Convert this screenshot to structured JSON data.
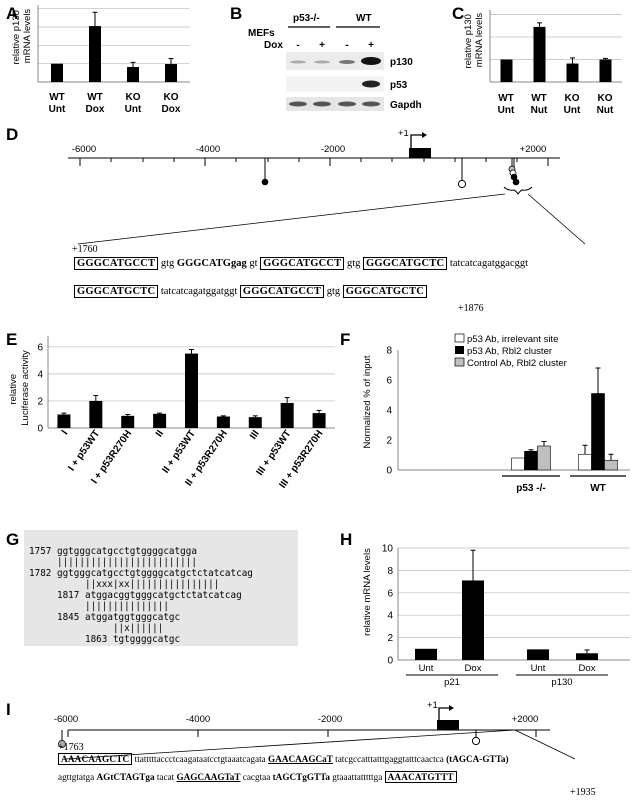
{
  "panel_labels": {
    "A": "A",
    "B": "B",
    "C": "C",
    "D": "D",
    "E": "E",
    "F": "F",
    "G": "G",
    "H": "H",
    "I": "I"
  },
  "panelA": {
    "ylabel": "relative p130\nmRNA levels",
    "cat_top": [
      "WT",
      "WT",
      "KO",
      "KO"
    ],
    "cat_bot": [
      "Unt",
      "Dox",
      "Unt",
      "Dox"
    ]
  },
  "panelB": {
    "mefs": "MEFs",
    "g1": "p53-/-",
    "g2": "WT",
    "dox": "Dox",
    "signs": [
      "-",
      "+",
      "-",
      "+"
    ],
    "bands": [
      "p130",
      "p53",
      "Gapdh"
    ]
  },
  "panelC": {
    "ylabel": "relative p130\nmRNA levels",
    "cat_top": [
      "WT",
      "WT",
      "KO",
      "KO"
    ],
    "cat_bot": [
      "Unt",
      "Nut",
      "Unt",
      "Nut"
    ]
  },
  "panelD": {
    "ticks": [
      "-6000",
      "-4000",
      "-2000",
      "+2000"
    ],
    "plus1": "+1",
    "start": "+1760",
    "end": "+1876",
    "line1": [
      "GGGCATGCCT",
      " gtg ",
      "GGGCATGgag",
      " gt ",
      "GGGCATGCCT",
      " gtg ",
      "GGGCATGCTC",
      " tatcatcagatggacggt"
    ],
    "line2": [
      "GGGCATGCTC",
      " tatcatcagatggatggt ",
      "GGGCATGCCT",
      " gtg ",
      "GGGCATGCTC"
    ]
  },
  "panelE": {
    "ylabel": "relative\nLuciferase activity",
    "categories": [
      "I",
      "I + p53WT",
      "I + p53R270H",
      "II",
      "II + p53WT",
      "II + p53R270H",
      "III",
      "III + p53WT",
      "III + p53R270H"
    ]
  },
  "panelF": {
    "ylabel": "Normalized % of input",
    "legend": [
      "p53 Ab, irrelevant site",
      "p53 Ab, Rbl2 cluster",
      "Control Ab, Rbl2 cluster"
    ],
    "groups": [
      "p53 -/-",
      "WT"
    ]
  },
  "panelG": {
    "lines": [
      "1757 ggtgggcatgcctgtggggcatgga",
      "     |||||||||||||||||||||||||",
      "1782 ggtgggcatgcctgtggggcatgctctatcatcag",
      "          ||xxx|xx||||||||||||||||",
      "     1817 atggacggtgggcatgctctatcatcag",
      "          |||||||||||||||",
      "     1845 atggatggtgggcatgc",
      "               ||x||||||",
      "          1863 tgtggggcatgc"
    ]
  },
  "panelH": {
    "ylabel": "relative mRNA levels",
    "cats": [
      "Unt",
      "Dox",
      "Unt",
      "Dox"
    ],
    "genes": [
      "p21",
      "p130"
    ]
  },
  "panelI": {
    "ticks": [
      "-6000",
      "-4000",
      "-2000",
      "+2000"
    ],
    "plus1": "+1",
    "start": "+1763",
    "end": "+1935",
    "l1_a": "AAACAAGCTC",
    "l1_b": " ttatttttaccctcaagataatcctgtaaatcagata ",
    "l1_c": "GAACAAGCaT",
    "l1_d": " tatcgccatttatttgaggtatttcaactca ",
    "l1_e": "(tAGCA-GTTa)",
    "l2_a": "agttgtatga ",
    "l2_b": "AGtCTAGTga",
    "l2_c": " tacat ",
    "l2_d": "GAGCAAGTaT",
    "l2_e": " cacgtaa ",
    "l2_f": "tAGCTgGTTa",
    "l2_g": " gtaaattatttttga ",
    "l2_h": "AAACATGTTT"
  },
  "chart_data": [
    {
      "panel": "A",
      "type": "bar",
      "categories": [
        "WT Unt",
        "WT Dox",
        "KO Unt",
        "KO Dox"
      ],
      "values": [
        1.0,
        3.05,
        0.82,
        0.98
      ],
      "errors": [
        0,
        0.75,
        0.25,
        0.3
      ],
      "ylabel": "relative p130 mRNA levels",
      "ylim": [
        0,
        4.2
      ],
      "grid": true
    },
    {
      "panel": "C",
      "type": "bar",
      "categories": [
        "WT Unt",
        "WT Nut",
        "KO Unt",
        "KO Nut"
      ],
      "values": [
        1.0,
        2.45,
        0.82,
        1.0
      ],
      "errors": [
        0,
        0.18,
        0.25,
        0.05
      ],
      "ylabel": "relative p130 mRNA levels",
      "ylim": [
        0,
        3.2
      ],
      "grid": true
    },
    {
      "panel": "E",
      "type": "bar",
      "categories": [
        "I",
        "I + p53WT",
        "I + p53R270H",
        "II",
        "II + p53WT",
        "II + p53R270H",
        "III",
        "III + p53WT",
        "III + p53R270H"
      ],
      "values": [
        1.0,
        2.0,
        0.9,
        1.05,
        5.5,
        0.85,
        0.8,
        1.85,
        1.1
      ],
      "errors": [
        0.1,
        0.4,
        0.1,
        0.05,
        0.3,
        0.05,
        0.1,
        0.4,
        0.2
      ],
      "ylabel": "relative Luciferase activity",
      "yticks": [
        0,
        2,
        4,
        6
      ],
      "ylim": [
        0,
        6.8
      ],
      "grid": true
    },
    {
      "panel": "F",
      "type": "bar",
      "categories": [
        "p53 -/-",
        "WT"
      ],
      "series": [
        {
          "name": "p53 Ab, irrelevant site",
          "values": [
            0.8,
            1.05
          ],
          "errors": [
            0,
            0.6
          ]
        },
        {
          "name": "p53 Ab, Rbl2 cluster",
          "values": [
            1.25,
            5.1
          ],
          "errors": [
            0.1,
            1.7
          ]
        },
        {
          "name": "Control Ab, Rbl2 cluster",
          "values": [
            1.6,
            0.65
          ],
          "errors": [
            0.3,
            0.4
          ]
        }
      ],
      "ylabel": "Normalized % of input",
      "yticks": [
        0,
        2,
        4,
        6,
        8
      ],
      "ylim": [
        0,
        8
      ],
      "legend": "top-left",
      "colors": [
        "#ffffff",
        "#000000",
        "#bfbfbf"
      ]
    },
    {
      "panel": "H",
      "type": "bar",
      "categories": [
        "p21 Unt",
        "p21 Dox",
        "p130 Unt",
        "p130 Dox"
      ],
      "values": [
        1.0,
        7.1,
        0.95,
        0.6
      ],
      "errors": [
        0,
        2.7,
        0,
        0.3
      ],
      "ylabel": "relative mRNA levels",
      "yticks": [
        0,
        2,
        4,
        6,
        8,
        10
      ],
      "ylim": [
        0,
        10
      ],
      "grid": true
    }
  ]
}
